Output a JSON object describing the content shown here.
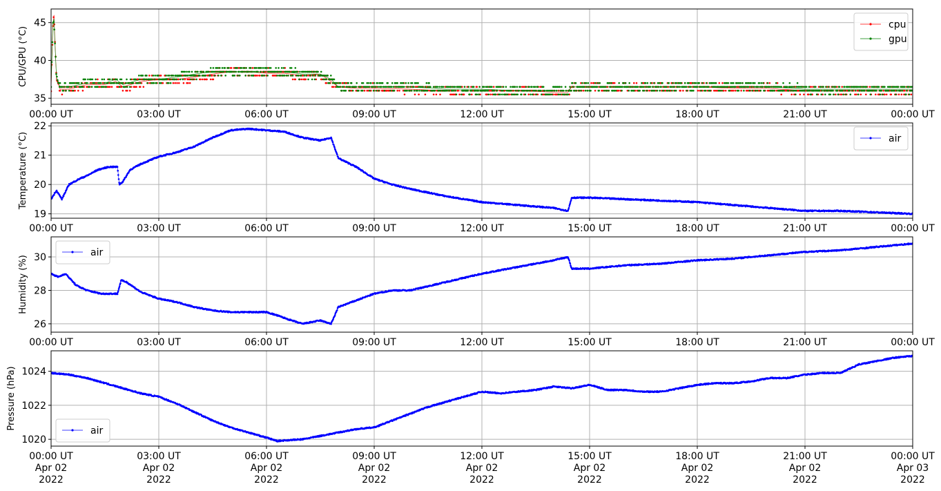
{
  "figure": {
    "background": "#ffffff",
    "grid_color": "#b0b0b0"
  },
  "x_ticks": [
    "00:00 UT",
    "03:00 UT",
    "06:00 UT",
    "09:00 UT",
    "12:00 UT",
    "15:00 UT",
    "18:00 UT",
    "21:00 UT",
    "00:00 UT"
  ],
  "bottom_dates": [
    [
      "Apr 02",
      "2022"
    ],
    [
      "Apr 02",
      "2022"
    ],
    [
      "Apr 02",
      "2022"
    ],
    [
      "Apr 02",
      "2022"
    ],
    [
      "Apr 02",
      "2022"
    ],
    [
      "Apr 02",
      "2022"
    ],
    [
      "Apr 02",
      "2022"
    ],
    [
      "Apr 02",
      "2022"
    ],
    [
      "Apr 03",
      "2022"
    ]
  ],
  "chart_data": [
    {
      "type": "line",
      "ylabel": "CPU/GPU (°C)",
      "xrange_hours": [
        0,
        24
      ],
      "ylim": [
        34.2,
        46.8
      ],
      "yticks": [
        35,
        40,
        45
      ],
      "grid": true,
      "legend_position": "top-right",
      "series": [
        {
          "name": "cpu",
          "color": "#ff0000",
          "x": [
            0,
            0.05,
            0.08,
            0.1,
            0.15,
            0.25,
            0.5,
            1,
            1.5,
            1.8,
            2,
            2.5,
            3,
            3.5,
            4,
            4.5,
            5,
            5.5,
            6,
            6.5,
            7,
            7.5,
            7.8,
            8,
            8.5,
            9,
            10,
            11,
            12,
            13,
            14,
            14.4,
            14.5,
            15,
            16,
            17,
            18,
            19,
            20,
            21,
            22,
            23,
            24
          ],
          "y": [
            36.2,
            44.5,
            46,
            43.5,
            37.5,
            36.2,
            36.2,
            36.8,
            36.8,
            37.2,
            36.5,
            37.2,
            37.5,
            37.5,
            37.8,
            38.2,
            38.5,
            38.5,
            38.3,
            38.3,
            38,
            38.2,
            37.2,
            36.5,
            36.3,
            36.3,
            36.2,
            36,
            36,
            36,
            35.8,
            35.8,
            36.5,
            36.5,
            36.5,
            36.5,
            36.5,
            36.3,
            36.3,
            36,
            36,
            36,
            36
          ]
        },
        {
          "name": "gpu",
          "color": "#008000",
          "x": [
            0,
            0.05,
            0.08,
            0.1,
            0.15,
            0.25,
            0.5,
            1,
            1.5,
            1.8,
            2,
            2.5,
            3,
            3.5,
            4,
            4.5,
            5,
            5.5,
            6,
            6.5,
            7,
            7.5,
            7.8,
            8,
            8.5,
            9,
            10,
            11,
            12,
            13,
            14,
            14.4,
            14.5,
            15,
            16,
            17,
            18,
            19,
            20,
            21,
            22,
            23,
            24
          ],
          "y": [
            36.5,
            45,
            45.5,
            43,
            37.8,
            36.5,
            36.5,
            37,
            37,
            37.5,
            36.8,
            37.5,
            37.5,
            37.8,
            38.2,
            38.5,
            38.5,
            38.5,
            38.5,
            38.5,
            38.2,
            38.2,
            37.5,
            36.5,
            36.5,
            36.5,
            36.5,
            36.2,
            36.2,
            36,
            36,
            36,
            36.5,
            36.5,
            36.5,
            36.5,
            36.5,
            36.5,
            36.5,
            36.2,
            36.2,
            36.2,
            36.2
          ]
        }
      ]
    },
    {
      "type": "line",
      "ylabel": "Temperature (°C)",
      "xrange_hours": [
        0,
        24
      ],
      "ylim": [
        18.85,
        22.1
      ],
      "yticks": [
        19,
        20,
        21,
        22
      ],
      "grid": true,
      "legend_position": "top-right",
      "series": [
        {
          "name": "air",
          "color": "#0000ff",
          "x": [
            0,
            0.15,
            0.3,
            0.5,
            0.8,
            1,
            1.3,
            1.6,
            1.85,
            1.9,
            2,
            2.2,
            2.5,
            3,
            3.5,
            4,
            4.5,
            5,
            5.5,
            6,
            6.5,
            7,
            7.5,
            7.8,
            8,
            8.5,
            9,
            9.5,
            10,
            11,
            12,
            13,
            14,
            14.4,
            14.5,
            15,
            16,
            17,
            18,
            19,
            20,
            21,
            22,
            23,
            24
          ],
          "y": [
            19.5,
            19.8,
            19.5,
            20,
            20.2,
            20.3,
            20.5,
            20.6,
            20.6,
            20,
            20.1,
            20.5,
            20.7,
            20.95,
            21.1,
            21.3,
            21.6,
            21.85,
            21.9,
            21.85,
            21.8,
            21.6,
            21.5,
            21.6,
            20.9,
            20.6,
            20.2,
            20.0,
            19.85,
            19.6,
            19.4,
            19.3,
            19.2,
            19.1,
            19.55,
            19.55,
            19.5,
            19.45,
            19.4,
            19.3,
            19.2,
            19.1,
            19.1,
            19.05,
            19.0
          ]
        }
      ]
    },
    {
      "type": "line",
      "ylabel": "Humidity (%)",
      "xrange_hours": [
        0,
        24
      ],
      "ylim": [
        25.5,
        31.2
      ],
      "yticks": [
        26,
        28,
        30
      ],
      "grid": true,
      "legend_position": "top-left",
      "series": [
        {
          "name": "air",
          "color": "#0000ff",
          "x": [
            0,
            0.2,
            0.4,
            0.7,
            1,
            1.4,
            1.85,
            1.95,
            2.1,
            2.5,
            3,
            3.5,
            4,
            4.5,
            5,
            5.5,
            6,
            6.3,
            6.7,
            7,
            7.5,
            7.8,
            8,
            8.5,
            9,
            9.5,
            10,
            11,
            12,
            13,
            14,
            14.4,
            14.5,
            15,
            16,
            17,
            18,
            19,
            20,
            21,
            22,
            23,
            24
          ],
          "y": [
            29,
            28.8,
            29,
            28.3,
            28,
            27.8,
            27.8,
            28.6,
            28.5,
            27.9,
            27.5,
            27.3,
            27.0,
            26.8,
            26.7,
            26.7,
            26.7,
            26.5,
            26.2,
            26.0,
            26.2,
            26.0,
            27.0,
            27.4,
            27.8,
            28.0,
            28.0,
            28.5,
            29.0,
            29.4,
            29.8,
            30.0,
            29.3,
            29.3,
            29.5,
            29.6,
            29.8,
            29.9,
            30.1,
            30.3,
            30.4,
            30.6,
            30.8
          ]
        }
      ]
    },
    {
      "type": "line",
      "ylabel": "Pressure (hPa)",
      "xrange_hours": [
        0,
        24
      ],
      "ylim": [
        1019.6,
        1025.2
      ],
      "yticks": [
        1020,
        1022,
        1024
      ],
      "grid": true,
      "legend_position": "bottom-left",
      "series": [
        {
          "name": "air",
          "color": "#0000ff",
          "x": [
            0,
            0.5,
            1,
            1.5,
            2,
            2.5,
            3,
            3.5,
            4,
            4.5,
            5,
            5.5,
            6,
            6.3,
            6.6,
            7,
            7.5,
            8,
            8.5,
            9,
            9.5,
            10,
            10.5,
            11,
            11.5,
            12,
            12.5,
            13,
            13.5,
            14,
            14.5,
            15,
            15.5,
            16,
            16.5,
            17,
            17.5,
            18,
            18.5,
            19,
            19.5,
            20,
            20.5,
            21,
            21.5,
            22,
            22.5,
            23,
            23.5,
            24
          ],
          "y": [
            1023.9,
            1023.8,
            1023.6,
            1023.3,
            1023.0,
            1022.7,
            1022.5,
            1022.1,
            1021.6,
            1021.1,
            1020.7,
            1020.4,
            1020.1,
            1019.9,
            1019.95,
            1020.0,
            1020.2,
            1020.4,
            1020.6,
            1020.7,
            1021.1,
            1021.5,
            1021.9,
            1022.2,
            1022.5,
            1022.8,
            1022.7,
            1022.8,
            1022.9,
            1023.1,
            1023.0,
            1023.2,
            1022.9,
            1022.9,
            1022.8,
            1022.8,
            1023.0,
            1023.2,
            1023.3,
            1023.3,
            1023.4,
            1023.6,
            1023.6,
            1023.8,
            1023.9,
            1023.9,
            1024.4,
            1024.6,
            1024.8,
            1024.9
          ]
        }
      ]
    }
  ]
}
